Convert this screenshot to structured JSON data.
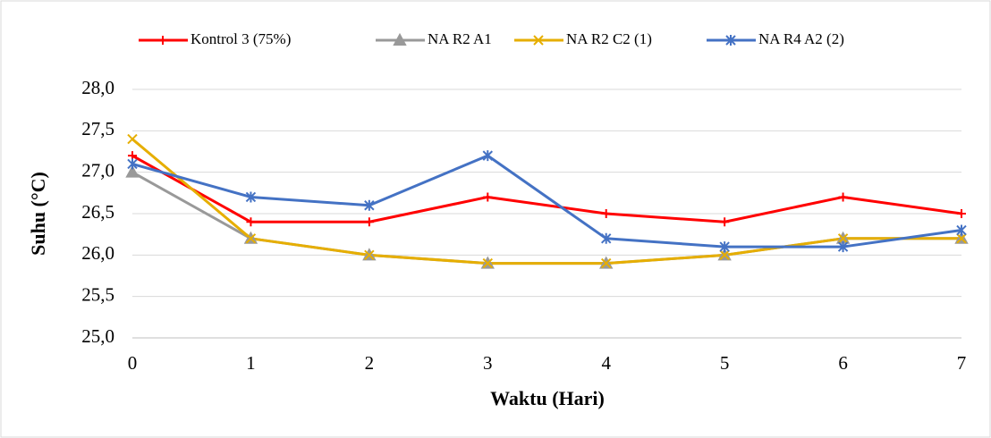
{
  "chart_data": {
    "type": "line",
    "x_label": "Waktu (Hari)",
    "y_label": "Suhu (°C)",
    "x": [
      0,
      1,
      2,
      3,
      4,
      5,
      6,
      7
    ],
    "xlim": [
      0,
      7
    ],
    "xticks": [
      0,
      1,
      2,
      3,
      4,
      5,
      6,
      7
    ],
    "ylim": [
      25,
      28
    ],
    "yticks": [
      {
        "value": 25,
        "label": "25,0"
      },
      {
        "value": 25.5,
        "label": "25,5"
      },
      {
        "value": 26,
        "label": "26,0"
      },
      {
        "value": 26.5,
        "label": "26,5"
      },
      {
        "value": 27,
        "label": "27,0"
      },
      {
        "value": 27.5,
        "label": "27,5"
      },
      {
        "value": 28,
        "label": "28,0"
      }
    ],
    "grid": true,
    "legend": "top",
    "series": [
      {
        "name": "Kontrol 3 (75%)",
        "color": "#ff0000",
        "marker": "plus",
        "values": [
          27.2,
          26.4,
          26.4,
          26.7,
          26.5,
          26.4,
          26.7,
          26.5
        ]
      },
      {
        "name": "NA R2 A1",
        "color": "#999999",
        "marker": "triangle",
        "values": [
          27.0,
          26.2,
          26.0,
          25.9,
          25.9,
          26.0,
          26.2,
          26.2
        ]
      },
      {
        "name": "NA R2 C2 (1)",
        "color": "#e6ae00",
        "marker": "x",
        "values": [
          27.4,
          26.2,
          26.0,
          25.9,
          25.9,
          26.0,
          26.2,
          26.2
        ]
      },
      {
        "name": "NA R4 A2 (2)",
        "color": "#4472c4",
        "marker": "asterisk",
        "values": [
          27.1,
          26.7,
          26.6,
          27.2,
          26.2,
          26.1,
          26.1,
          26.3
        ]
      }
    ]
  }
}
